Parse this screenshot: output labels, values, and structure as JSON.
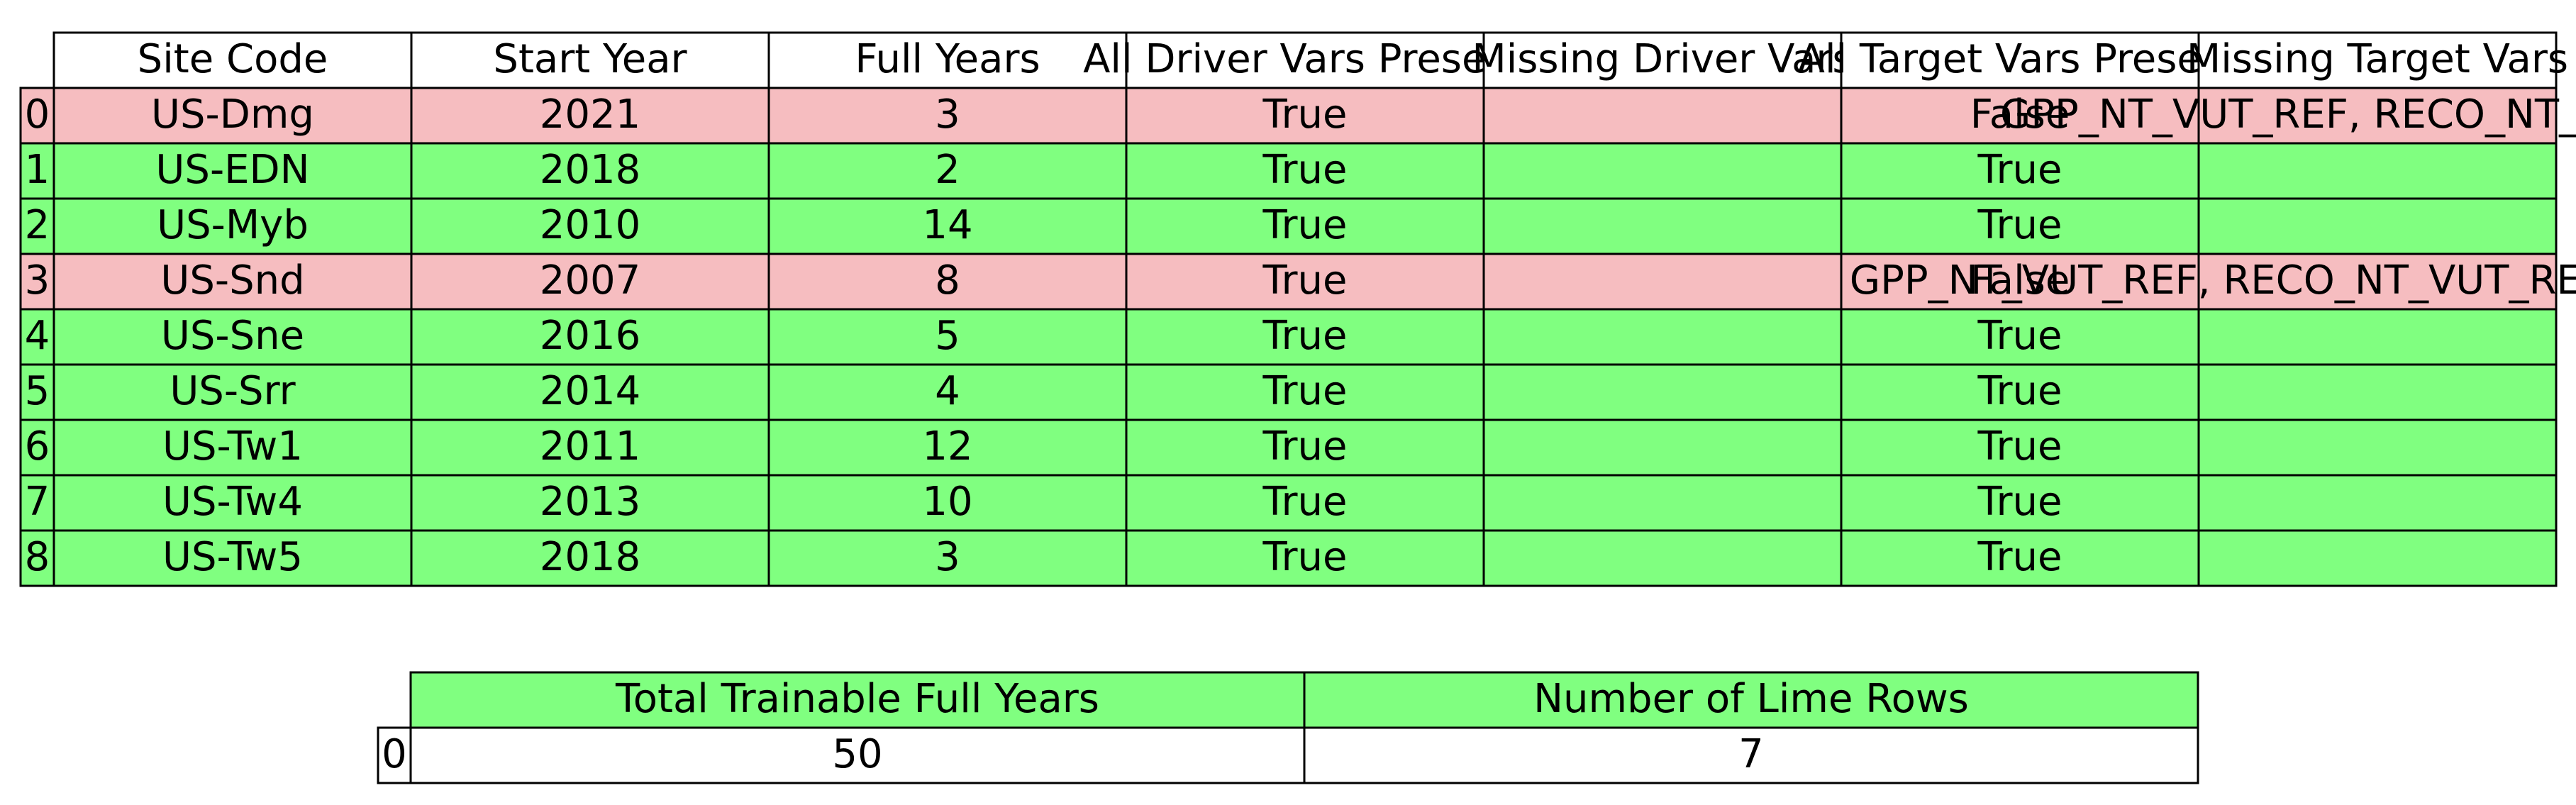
{
  "chart_data": [
    {
      "type": "table",
      "columns": [
        "Site Code",
        "Start Year",
        "Full Years",
        "All Driver Vars Present",
        "Missing Driver Vars",
        "All Target Vars Present",
        "Missing Target Vars"
      ],
      "row_labels": [
        "0",
        "1",
        "2",
        "3",
        "4",
        "5",
        "6",
        "7",
        "8"
      ],
      "rows": [
        [
          "US-Dmg",
          "2021",
          "3",
          "True",
          "",
          "False",
          "GPP_NT_VUT_REF, RECO_NT_VUT_REF"
        ],
        [
          "US-EDN",
          "2018",
          "2",
          "True",
          "",
          "True",
          ""
        ],
        [
          "US-Myb",
          "2010",
          "14",
          "True",
          "",
          "True",
          ""
        ],
        [
          "US-Snd",
          "2007",
          "8",
          "True",
          "",
          "False",
          "GPP_NT_VUT_REF, RECO_NT_VUT_REF, NEE_VUT_REF"
        ],
        [
          "US-Sne",
          "2016",
          "5",
          "True",
          "",
          "True",
          ""
        ],
        [
          "US-Srr",
          "2014",
          "4",
          "True",
          "",
          "True",
          ""
        ],
        [
          "US-Tw1",
          "2011",
          "12",
          "True",
          "",
          "True",
          ""
        ],
        [
          "US-Tw4",
          "2013",
          "10",
          "True",
          "",
          "True",
          ""
        ],
        [
          "US-Tw5",
          "2018",
          "3",
          "True",
          "",
          "True",
          ""
        ]
      ],
      "row_colors": [
        "#f6bdc0",
        "#80ff80",
        "#80ff80",
        "#f6bdc0",
        "#80ff80",
        "#80ff80",
        "#80ff80",
        "#80ff80",
        "#80ff80"
      ],
      "header_color": "#ffffff"
    },
    {
      "type": "table",
      "columns": [
        "Total Trainable Full Years",
        "Number of Lime Rows"
      ],
      "row_labels": [
        "0"
      ],
      "rows": [
        [
          "50",
          "7"
        ]
      ],
      "row_colors": [
        "#ffffff"
      ],
      "header_color": "#80ff80"
    }
  ]
}
